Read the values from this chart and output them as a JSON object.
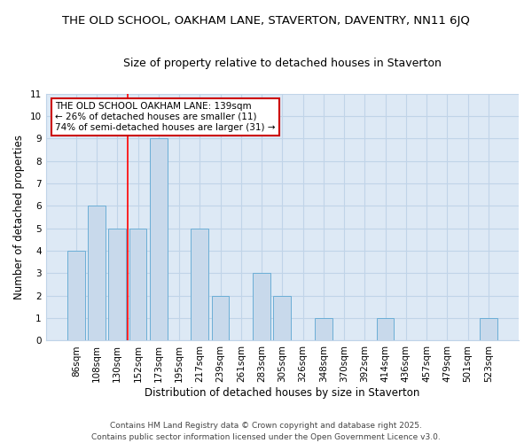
{
  "title": "THE OLD SCHOOL, OAKHAM LANE, STAVERTON, DAVENTRY, NN11 6JQ",
  "subtitle": "Size of property relative to detached houses in Staverton",
  "xlabel": "Distribution of detached houses by size in Staverton",
  "ylabel": "Number of detached properties",
  "categories": [
    "86sqm",
    "108sqm",
    "130sqm",
    "152sqm",
    "173sqm",
    "195sqm",
    "217sqm",
    "239sqm",
    "261sqm",
    "283sqm",
    "305sqm",
    "326sqm",
    "348sqm",
    "370sqm",
    "392sqm",
    "414sqm",
    "436sqm",
    "457sqm",
    "479sqm",
    "501sqm",
    "523sqm"
  ],
  "values": [
    4,
    6,
    5,
    5,
    9,
    0,
    5,
    2,
    0,
    3,
    2,
    0,
    1,
    0,
    0,
    1,
    0,
    0,
    0,
    0,
    1
  ],
  "bar_color": "#c8d9eb",
  "bar_edge_color": "#6baed6",
  "red_line_x": 2.5,
  "ylim": [
    0,
    11
  ],
  "yticks": [
    0,
    1,
    2,
    3,
    4,
    5,
    6,
    7,
    8,
    9,
    10,
    11
  ],
  "annotation_text": "THE OLD SCHOOL OAKHAM LANE: 139sqm\n← 26% of detached houses are smaller (11)\n74% of semi-detached houses are larger (31) →",
  "annotation_box_color": "#ffffff",
  "annotation_box_edge": "#cc0000",
  "footer": "Contains HM Land Registry data © Crown copyright and database right 2025.\nContains public sector information licensed under the Open Government Licence v3.0.",
  "fig_background": "#ffffff",
  "plot_background": "#dde9f5",
  "grid_color": "#c0d4e8",
  "title_fontsize": 9.5,
  "subtitle_fontsize": 9,
  "axis_label_fontsize": 8.5,
  "tick_fontsize": 7.5,
  "footer_fontsize": 6.5,
  "annotation_fontsize": 7.5
}
